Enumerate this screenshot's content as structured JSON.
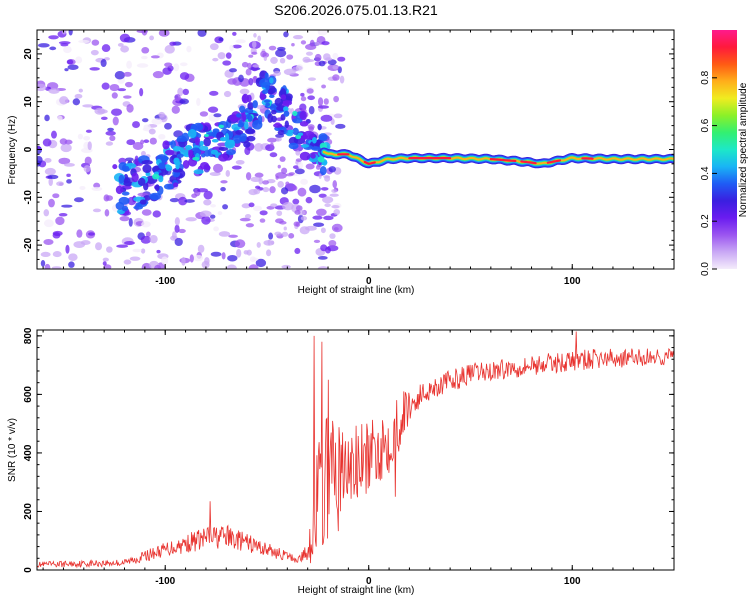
{
  "title": "S206.2026.075.01.13.R21",
  "colors": {
    "snr_line": "#e8332f",
    "colorbar": [
      "#f4ecfb",
      "#c9a8f5",
      "#9b55f0",
      "#6a1cf0",
      "#3a1fe0",
      "#1f5cf5",
      "#19b5f5",
      "#1de8c8",
      "#33f070",
      "#8cf028",
      "#f0ec20",
      "#ffae1a",
      "#ff5a14",
      "#ff1a3c",
      "#ff1a8c"
    ]
  },
  "chart_data": [
    {
      "type": "heatmap",
      "title": "S206.2026.075.01.13.R21",
      "xlabel": "Height of straight line (km)",
      "ylabel": "Frequency (Hz)",
      "xlim": [
        -163,
        150
      ],
      "ylim": [
        -25,
        25
      ],
      "xticks": [
        -100,
        0,
        100
      ],
      "xtick_labels": [
        "-100",
        "0",
        "100"
      ],
      "yticks": [
        -20,
        -10,
        0,
        10,
        20
      ],
      "ytick_labels": [
        "-20",
        "-10",
        "0",
        "10",
        "20"
      ],
      "colorbar": {
        "label": "Normalized spectral amplitude",
        "range": [
          0,
          1
        ],
        "ticks": [
          0.0,
          0.2,
          0.4,
          0.6,
          0.8
        ],
        "tick_labels": [
          "0.0",
          "0.2",
          "0.4",
          "0.6",
          "0.8"
        ]
      },
      "ridge": [
        {
          "x": -120,
          "y": -8
        },
        {
          "x": -110,
          "y": -7
        },
        {
          "x": -100,
          "y": -4
        },
        {
          "x": -90,
          "y": -1
        },
        {
          "x": -80,
          "y": 1
        },
        {
          "x": -70,
          "y": 3
        },
        {
          "x": -60,
          "y": 6
        },
        {
          "x": -50,
          "y": 12
        },
        {
          "x": -40,
          "y": 7
        },
        {
          "x": -30,
          "y": 2
        },
        {
          "x": -20,
          "y": -1
        },
        {
          "x": -10,
          "y": -1
        },
        {
          "x": 0,
          "y": -3
        },
        {
          "x": 10,
          "y": -2
        },
        {
          "x": 20,
          "y": -1.8
        },
        {
          "x": 40,
          "y": -1.8
        },
        {
          "x": 60,
          "y": -2
        },
        {
          "x": 75,
          "y": -2.5
        },
        {
          "x": 85,
          "y": -3
        },
        {
          "x": 100,
          "y": -1.8
        },
        {
          "x": 120,
          "y": -2
        },
        {
          "x": 150,
          "y": -2
        }
      ]
    },
    {
      "type": "line",
      "xlabel": "Height of straight line (km)",
      "ylabel": "SNR (10 * v/v)",
      "xlim": [
        -163,
        150
      ],
      "ylim": [
        0,
        820
      ],
      "xticks": [
        -100,
        0,
        100
      ],
      "xtick_labels": [
        "-100",
        "0",
        "100"
      ],
      "yticks": [
        0,
        200,
        400,
        600,
        800
      ],
      "ytick_labels": [
        "0",
        "200",
        "400",
        "600",
        "800"
      ],
      "series": [
        {
          "name": "SNR",
          "envelope": [
            {
              "x": -163,
              "mean": 18,
              "amp": 20
            },
            {
              "x": -120,
              "mean": 25,
              "amp": 25
            },
            {
              "x": -100,
              "mean": 70,
              "amp": 50
            },
            {
              "x": -80,
              "mean": 110,
              "amp": 80
            },
            {
              "x": -70,
              "mean": 115,
              "amp": 80
            },
            {
              "x": -50,
              "mean": 70,
              "amp": 50
            },
            {
              "x": -35,
              "mean": 35,
              "amp": 25
            },
            {
              "x": -30,
              "mean": 60,
              "amp": 60
            },
            {
              "x": -25,
              "mean": 250,
              "amp": 250
            },
            {
              "x": -20,
              "mean": 300,
              "amp": 300
            },
            {
              "x": -10,
              "mean": 340,
              "amp": 200
            },
            {
              "x": 0,
              "mean": 380,
              "amp": 150
            },
            {
              "x": 10,
              "mean": 450,
              "amp": 150
            },
            {
              "x": 20,
              "mean": 560,
              "amp": 100
            },
            {
              "x": 30,
              "mean": 620,
              "amp": 80
            },
            {
              "x": 50,
              "mean": 670,
              "amp": 70
            },
            {
              "x": 80,
              "mean": 700,
              "amp": 70
            },
            {
              "x": 110,
              "mean": 720,
              "amp": 70
            },
            {
              "x": 150,
              "mean": 730,
              "amp": 60
            }
          ],
          "spikes": [
            {
              "x": -27,
              "y": 800
            },
            {
              "x": -23,
              "y": 780
            },
            {
              "x": -20,
              "y": 650
            },
            {
              "x": -13,
              "y": 470
            },
            {
              "x": 6,
              "y": 450
            },
            {
              "x": 13,
              "y": 250
            },
            {
              "x": 102,
              "y": 815
            },
            {
              "x": -78,
              "y": 235
            }
          ]
        }
      ]
    }
  ]
}
